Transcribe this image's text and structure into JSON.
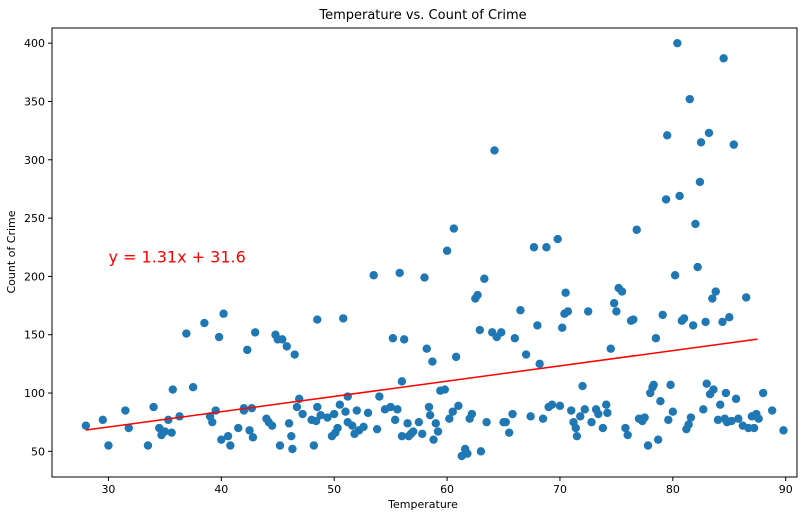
{
  "chart_data": {
    "type": "scatter",
    "title": "Temperature vs. Count of Crime",
    "xlabel": "Temperature",
    "ylabel": "Count of Crime",
    "xlim": [
      25,
      91
    ],
    "ylim": [
      28,
      413
    ],
    "xticks": [
      30,
      40,
      50,
      60,
      70,
      80,
      90
    ],
    "yticks": [
      50,
      100,
      150,
      200,
      250,
      300,
      350,
      400
    ],
    "grid": false,
    "legend": "none",
    "point_color": "#1f77b4",
    "line_color": "#ff0000",
    "regression": {
      "slope": 1.31,
      "intercept": 31.6,
      "x_range": [
        28,
        87.5
      ],
      "label": "y = 1.31x + 31.6",
      "label_position": [
        30,
        210
      ]
    },
    "points": [
      [
        28,
        72
      ],
      [
        29.5,
        77
      ],
      [
        30,
        55
      ],
      [
        31.5,
        85
      ],
      [
        31.8,
        70
      ],
      [
        33.5,
        55
      ],
      [
        34,
        88
      ],
      [
        34.5,
        70
      ],
      [
        34.7,
        64
      ],
      [
        35,
        67
      ],
      [
        35.3,
        77
      ],
      [
        35.6,
        66
      ],
      [
        35.7,
        103
      ],
      [
        36.3,
        80
      ],
      [
        36.9,
        151
      ],
      [
        37.5,
        105
      ],
      [
        38.5,
        160
      ],
      [
        39,
        80
      ],
      [
        39.2,
        75
      ],
      [
        39.5,
        85
      ],
      [
        39.8,
        148
      ],
      [
        40,
        60
      ],
      [
        40.2,
        168
      ],
      [
        40.6,
        63
      ],
      [
        40.8,
        55
      ],
      [
        41.5,
        70
      ],
      [
        42,
        87
      ],
      [
        42,
        85
      ],
      [
        42.3,
        137
      ],
      [
        42.5,
        68
      ],
      [
        42.7,
        87
      ],
      [
        42.8,
        62
      ],
      [
        43,
        152
      ],
      [
        44,
        78
      ],
      [
        44.2,
        75
      ],
      [
        44.5,
        72
      ],
      [
        44.8,
        150
      ],
      [
        45,
        146
      ],
      [
        45.2,
        55
      ],
      [
        45.4,
        146
      ],
      [
        45.8,
        140
      ],
      [
        46,
        74
      ],
      [
        46.2,
        63
      ],
      [
        46.3,
        52
      ],
      [
        46.5,
        133
      ],
      [
        46.7,
        88
      ],
      [
        46.9,
        95
      ],
      [
        47.2,
        82
      ],
      [
        48,
        77
      ],
      [
        48.2,
        55
      ],
      [
        48.4,
        76
      ],
      [
        48.5,
        88
      ],
      [
        48.5,
        163
      ],
      [
        48.8,
        81
      ],
      [
        49.4,
        79
      ],
      [
        49.8,
        63
      ],
      [
        50,
        82
      ],
      [
        50.1,
        66
      ],
      [
        50.3,
        70
      ],
      [
        50.5,
        90
      ],
      [
        50.8,
        164
      ],
      [
        51,
        84
      ],
      [
        51.2,
        97
      ],
      [
        51.2,
        75
      ],
      [
        51.6,
        72
      ],
      [
        51.8,
        65
      ],
      [
        52,
        85
      ],
      [
        52.2,
        68
      ],
      [
        52.6,
        71
      ],
      [
        53,
        83
      ],
      [
        53.5,
        201
      ],
      [
        53.8,
        69
      ],
      [
        54,
        97
      ],
      [
        54.5,
        86
      ],
      [
        55,
        88
      ],
      [
        55.2,
        147
      ],
      [
        55.4,
        77
      ],
      [
        55.6,
        86
      ],
      [
        55.8,
        203
      ],
      [
        56,
        63
      ],
      [
        56,
        110
      ],
      [
        56.2,
        146
      ],
      [
        56.5,
        74
      ],
      [
        56.6,
        63
      ],
      [
        56.8,
        65
      ],
      [
        57,
        67
      ],
      [
        57.5,
        75
      ],
      [
        57.8,
        65
      ],
      [
        58,
        199
      ],
      [
        58.2,
        138
      ],
      [
        58.4,
        88
      ],
      [
        58.5,
        81
      ],
      [
        58.7,
        127
      ],
      [
        58.8,
        60
      ],
      [
        59,
        74
      ],
      [
        59.2,
        67
      ],
      [
        59.4,
        102
      ],
      [
        59.8,
        103
      ],
      [
        60,
        222
      ],
      [
        60.2,
        78
      ],
      [
        60.5,
        84
      ],
      [
        60.6,
        241
      ],
      [
        60.8,
        131
      ],
      [
        61,
        89
      ],
      [
        61.3,
        46
      ],
      [
        61.6,
        52
      ],
      [
        61.8,
        48
      ],
      [
        62,
        78
      ],
      [
        62.2,
        82
      ],
      [
        62.5,
        181
      ],
      [
        62.7,
        184
      ],
      [
        62.9,
        154
      ],
      [
        63,
        50
      ],
      [
        63.3,
        198
      ],
      [
        63.5,
        75
      ],
      [
        64,
        152
      ],
      [
        64.2,
        308
      ],
      [
        64.4,
        148
      ],
      [
        64.8,
        152
      ],
      [
        65,
        75
      ],
      [
        65.2,
        75
      ],
      [
        65.5,
        66
      ],
      [
        65.8,
        82
      ],
      [
        66,
        147
      ],
      [
        66.5,
        171
      ],
      [
        67,
        133
      ],
      [
        67.4,
        80
      ],
      [
        67.7,
        225
      ],
      [
        68,
        158
      ],
      [
        68.2,
        125
      ],
      [
        68.5,
        78
      ],
      [
        68.8,
        225
      ],
      [
        69,
        88
      ],
      [
        69.3,
        90
      ],
      [
        69.8,
        232
      ],
      [
        70,
        89
      ],
      [
        70.2,
        156
      ],
      [
        70.4,
        168
      ],
      [
        70.5,
        186
      ],
      [
        70.7,
        170
      ],
      [
        71,
        85
      ],
      [
        71.2,
        75
      ],
      [
        71.4,
        70
      ],
      [
        71.5,
        63
      ],
      [
        71.8,
        80
      ],
      [
        72,
        106
      ],
      [
        72.2,
        86
      ],
      [
        72.5,
        170
      ],
      [
        72.8,
        75
      ],
      [
        73.2,
        86
      ],
      [
        73.4,
        82
      ],
      [
        73.8,
        70
      ],
      [
        74.1,
        90
      ],
      [
        74.2,
        83
      ],
      [
        74.5,
        138
      ],
      [
        74.8,
        177
      ],
      [
        75,
        170
      ],
      [
        75.2,
        190
      ],
      [
        75.5,
        187
      ],
      [
        75.8,
        70
      ],
      [
        76,
        64
      ],
      [
        76.3,
        162
      ],
      [
        76.5,
        163
      ],
      [
        76.8,
        240
      ],
      [
        77,
        78
      ],
      [
        77.3,
        76
      ],
      [
        77.5,
        79
      ],
      [
        77.8,
        55
      ],
      [
        78,
        100
      ],
      [
        78.2,
        105
      ],
      [
        78.3,
        107
      ],
      [
        78.5,
        147
      ],
      [
        78.7,
        60
      ],
      [
        78.9,
        93
      ],
      [
        79.1,
        167
      ],
      [
        79.4,
        266
      ],
      [
        79.5,
        321
      ],
      [
        79.6,
        77
      ],
      [
        79.8,
        107
      ],
      [
        80,
        84
      ],
      [
        80.2,
        201
      ],
      [
        80.4,
        400
      ],
      [
        80.6,
        269
      ],
      [
        80.8,
        162
      ],
      [
        81,
        164
      ],
      [
        81.2,
        69
      ],
      [
        81.4,
        73
      ],
      [
        81.5,
        352
      ],
      [
        81.6,
        79
      ],
      [
        81.8,
        158
      ],
      [
        82,
        245
      ],
      [
        82.2,
        208
      ],
      [
        82.4,
        281
      ],
      [
        82.5,
        315
      ],
      [
        82.7,
        86
      ],
      [
        82.9,
        161
      ],
      [
        83,
        108
      ],
      [
        83.2,
        323
      ],
      [
        83.3,
        99
      ],
      [
        83.5,
        181
      ],
      [
        83.6,
        103
      ],
      [
        83.8,
        187
      ],
      [
        84,
        77
      ],
      [
        84.2,
        90
      ],
      [
        84.4,
        161
      ],
      [
        84.5,
        387
      ],
      [
        84.6,
        78
      ],
      [
        84.7,
        100
      ],
      [
        84.8,
        75
      ],
      [
        85,
        165
      ],
      [
        85.2,
        76
      ],
      [
        85.4,
        313
      ],
      [
        85.6,
        95
      ],
      [
        85.8,
        78
      ],
      [
        86.2,
        72
      ],
      [
        86.5,
        182
      ],
      [
        86.7,
        70
      ],
      [
        87,
        80
      ],
      [
        87.2,
        70
      ],
      [
        87.4,
        82
      ],
      [
        87.6,
        78
      ],
      [
        88,
        100
      ],
      [
        88.8,
        85
      ],
      [
        89.8,
        68
      ]
    ]
  }
}
